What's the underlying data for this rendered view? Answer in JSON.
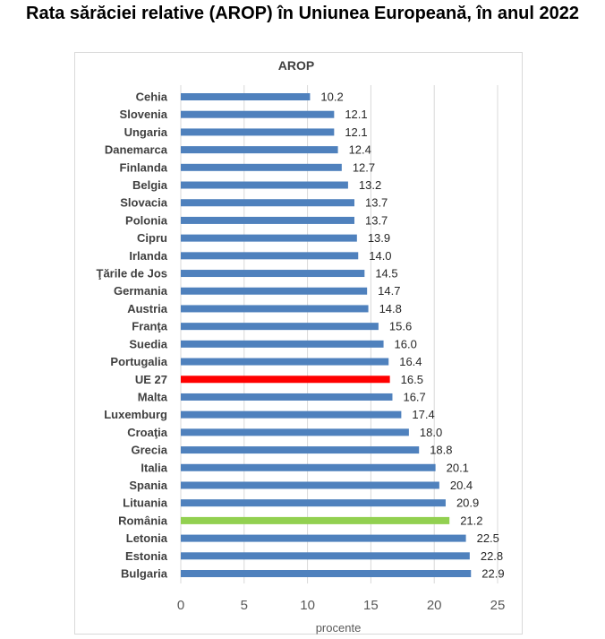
{
  "page": {
    "title": "Rata sărăciei relative (AROP) în Uniunea Europeană, în anul 2022"
  },
  "chart_data": {
    "type": "bar",
    "orientation": "horizontal",
    "title": "AROP",
    "xlabel": "procente",
    "ylabel": "",
    "xlim": [
      0,
      25
    ],
    "xticks": [
      "0",
      "5",
      "10",
      "15",
      "20",
      "25"
    ],
    "grid": "vertical",
    "legend": "none",
    "colors": {
      "default": "#4f81bd",
      "eu": "#ff0000",
      "romania": "#92d050"
    },
    "categories": [
      "Cehia",
      "Slovenia",
      "Ungaria",
      "Danemarca",
      "Finlanda",
      "Belgia",
      "Slovacia",
      "Polonia",
      "Cipru",
      "Irlanda",
      "Ţările de Jos",
      "Germania",
      "Austria",
      "Franţa",
      "Suedia",
      "Portugalia",
      "UE 27",
      "Malta",
      "Luxemburg",
      "Croaţia",
      "Grecia",
      "Italia",
      "Spania",
      "Lituania",
      "România",
      "Letonia",
      "Estonia",
      "Bulgaria"
    ],
    "values": [
      10.2,
      12.1,
      12.1,
      12.4,
      12.7,
      13.2,
      13.7,
      13.7,
      13.9,
      14.0,
      14.5,
      14.7,
      14.8,
      15.6,
      16.0,
      16.4,
      16.5,
      16.7,
      17.4,
      18.0,
      18.8,
      20.1,
      20.4,
      20.9,
      21.2,
      22.5,
      22.8,
      22.9
    ],
    "value_labels": [
      "10.2",
      "12.1",
      "12.1",
      "12.4",
      "12.7",
      "13.2",
      "13.7",
      "13.7",
      "13.9",
      "14.0",
      "14.5",
      "14.7",
      "14.8",
      "15.6",
      "16.0",
      "16.4",
      "16.5",
      "16.7",
      "17.4",
      "18.0",
      "18.8",
      "20.1",
      "20.4",
      "20.9",
      "21.2",
      "22.5",
      "22.8",
      "22.9"
    ],
    "highlights": {
      "UE 27": "eu",
      "România": "romania"
    }
  }
}
